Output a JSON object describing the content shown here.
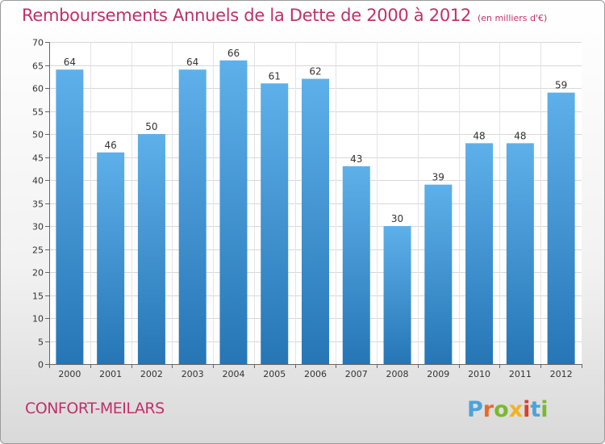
{
  "header": {
    "title": "Remboursements Annuels de la Dette de 2000 à 2012",
    "subtitle": "(en milliers d'€)"
  },
  "footer": {
    "commune": "CONFORT-MEILARS",
    "logo_text": "Proxiti"
  },
  "colors": {
    "title": "#c0306a",
    "bar_top": "#5eb0ea",
    "bar_bottom": "#2676b6",
    "logo": [
      "#4ca3d9",
      "#e86a2a",
      "#7cb82f",
      "#f0b323",
      "#d9412c",
      "#4ca3d9",
      "#7cb82f"
    ]
  },
  "chart_data": {
    "type": "bar",
    "categories": [
      "2000",
      "2001",
      "2002",
      "2003",
      "2004",
      "2005",
      "2006",
      "2007",
      "2008",
      "2009",
      "2010",
      "2011",
      "2012"
    ],
    "values": [
      64,
      46,
      50,
      64,
      66,
      61,
      62,
      43,
      30,
      39,
      48,
      48,
      59
    ],
    "ylim": [
      0,
      70
    ],
    "yticks": [
      0,
      5,
      10,
      15,
      20,
      25,
      30,
      35,
      40,
      45,
      50,
      55,
      60,
      65,
      70
    ],
    "grid": true,
    "data_labels": true
  }
}
